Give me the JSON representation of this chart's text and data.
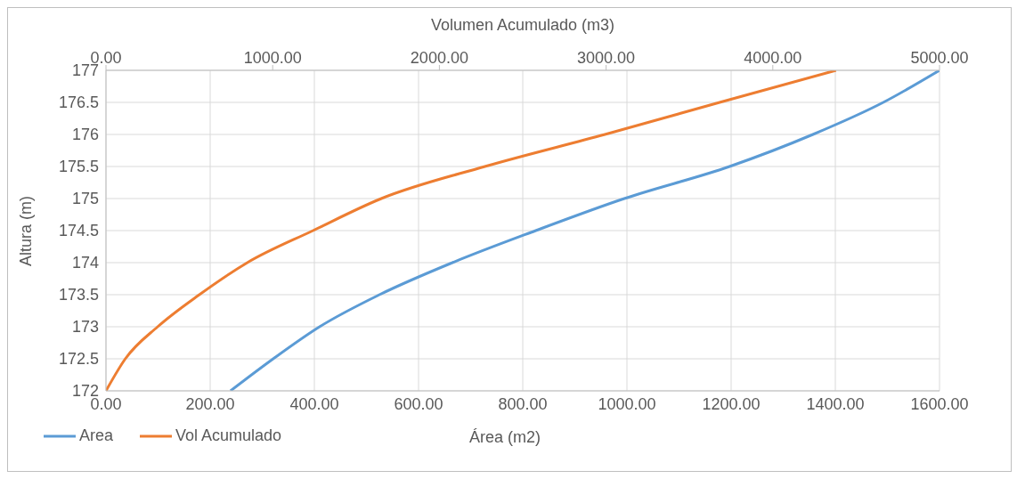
{
  "chart_data": {
    "type": "line",
    "xlabel": "Área (m2)",
    "ylabel": "Altura (m)",
    "x2label": "Volumen Acumulado (m3)",
    "series": [
      {
        "name": "Area",
        "color": "#5b9bd5",
        "x": [
          239,
          321,
          410,
          525,
          665,
          825,
          995,
          1197,
          1357,
          1492,
          1600
        ],
        "values": [
          172,
          172.5,
          173,
          173.5,
          174,
          174.5,
          175,
          175.5,
          176,
          176.5,
          177
        ]
      },
      {
        "name": "Vol Acumulado",
        "color": "#ed7d31",
        "axis": "x2",
        "x": [
          0,
          116,
          310,
          560,
          848,
          1242,
          1652,
          2273,
          2993,
          3681,
          4379
        ],
        "values": [
          172,
          172.5,
          173,
          173.5,
          174,
          174.5,
          175,
          175.5,
          176,
          176.5,
          177
        ]
      }
    ],
    "xlim": [
      0,
      1600
    ],
    "xticks": [
      {
        "value": 0,
        "label": "0.00"
      },
      {
        "value": 200,
        "label": "200.00"
      },
      {
        "value": 400,
        "label": "400.00"
      },
      {
        "value": 600,
        "label": "600.00"
      },
      {
        "value": 800,
        "label": "800.00"
      },
      {
        "value": 1000,
        "label": "1000.00"
      },
      {
        "value": 1200,
        "label": "1200.00"
      },
      {
        "value": 1400,
        "label": "1400.00"
      },
      {
        "value": 1600,
        "label": "1600.00"
      }
    ],
    "x2lim": [
      0,
      5000
    ],
    "x2ticks": [
      {
        "value": 0,
        "label": "0.00"
      },
      {
        "value": 1000,
        "label": "1000.00"
      },
      {
        "value": 2000,
        "label": "2000.00"
      },
      {
        "value": 3000,
        "label": "3000.00"
      },
      {
        "value": 4000,
        "label": "4000.00"
      },
      {
        "value": 5000,
        "label": "5000.00"
      }
    ],
    "ylim": [
      172,
      177
    ],
    "yticks": [
      172,
      172.5,
      173,
      173.5,
      174,
      174.5,
      175,
      175.5,
      176,
      176.5,
      177
    ],
    "grid": true,
    "legend": "bottom left",
    "marker": "none",
    "line_style": "solid"
  }
}
